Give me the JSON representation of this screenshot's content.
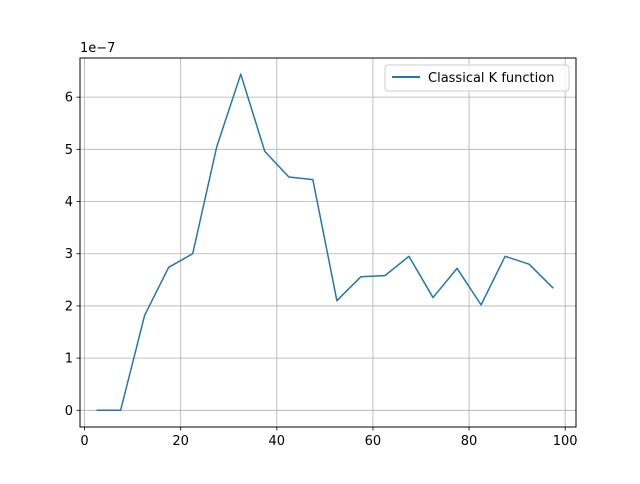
{
  "chart_data": {
    "type": "line",
    "title": "",
    "xlabel": "",
    "ylabel": "",
    "y_scale_label": "1e−7",
    "xlim": [
      -0.95,
      102.25
    ],
    "ylim": [
      -0.32,
      6.75
    ],
    "x_ticks": [
      0,
      20,
      40,
      60,
      80,
      100
    ],
    "x_tick_labels": [
      "0",
      "20",
      "40",
      "60",
      "80",
      "100"
    ],
    "y_ticks": [
      0,
      1,
      2,
      3,
      4,
      5,
      6
    ],
    "y_tick_labels": [
      "0",
      "1",
      "2",
      "3",
      "4",
      "5",
      "6"
    ],
    "grid": true,
    "legend_position": "upper-right",
    "colors": {
      "series": "#1f77b4",
      "grid": "#b0b0b0",
      "axes": "#000000"
    },
    "series": [
      {
        "name": "Classical K function",
        "x": [
          2.5,
          7.5,
          12.5,
          17.5,
          22.5,
          27.5,
          32.5,
          37.5,
          42.5,
          47.5,
          52.5,
          57.5,
          62.5,
          67.5,
          72.5,
          77.5,
          82.5,
          87.5,
          92.5,
          97.5
        ],
        "y": [
          0,
          0,
          1.82,
          2.74,
          3.0,
          5.05,
          6.44,
          4.96,
          4.47,
          4.42,
          2.1,
          2.56,
          2.58,
          2.95,
          2.16,
          2.72,
          2.02,
          2.95,
          2.8,
          2.34
        ]
      }
    ]
  }
}
